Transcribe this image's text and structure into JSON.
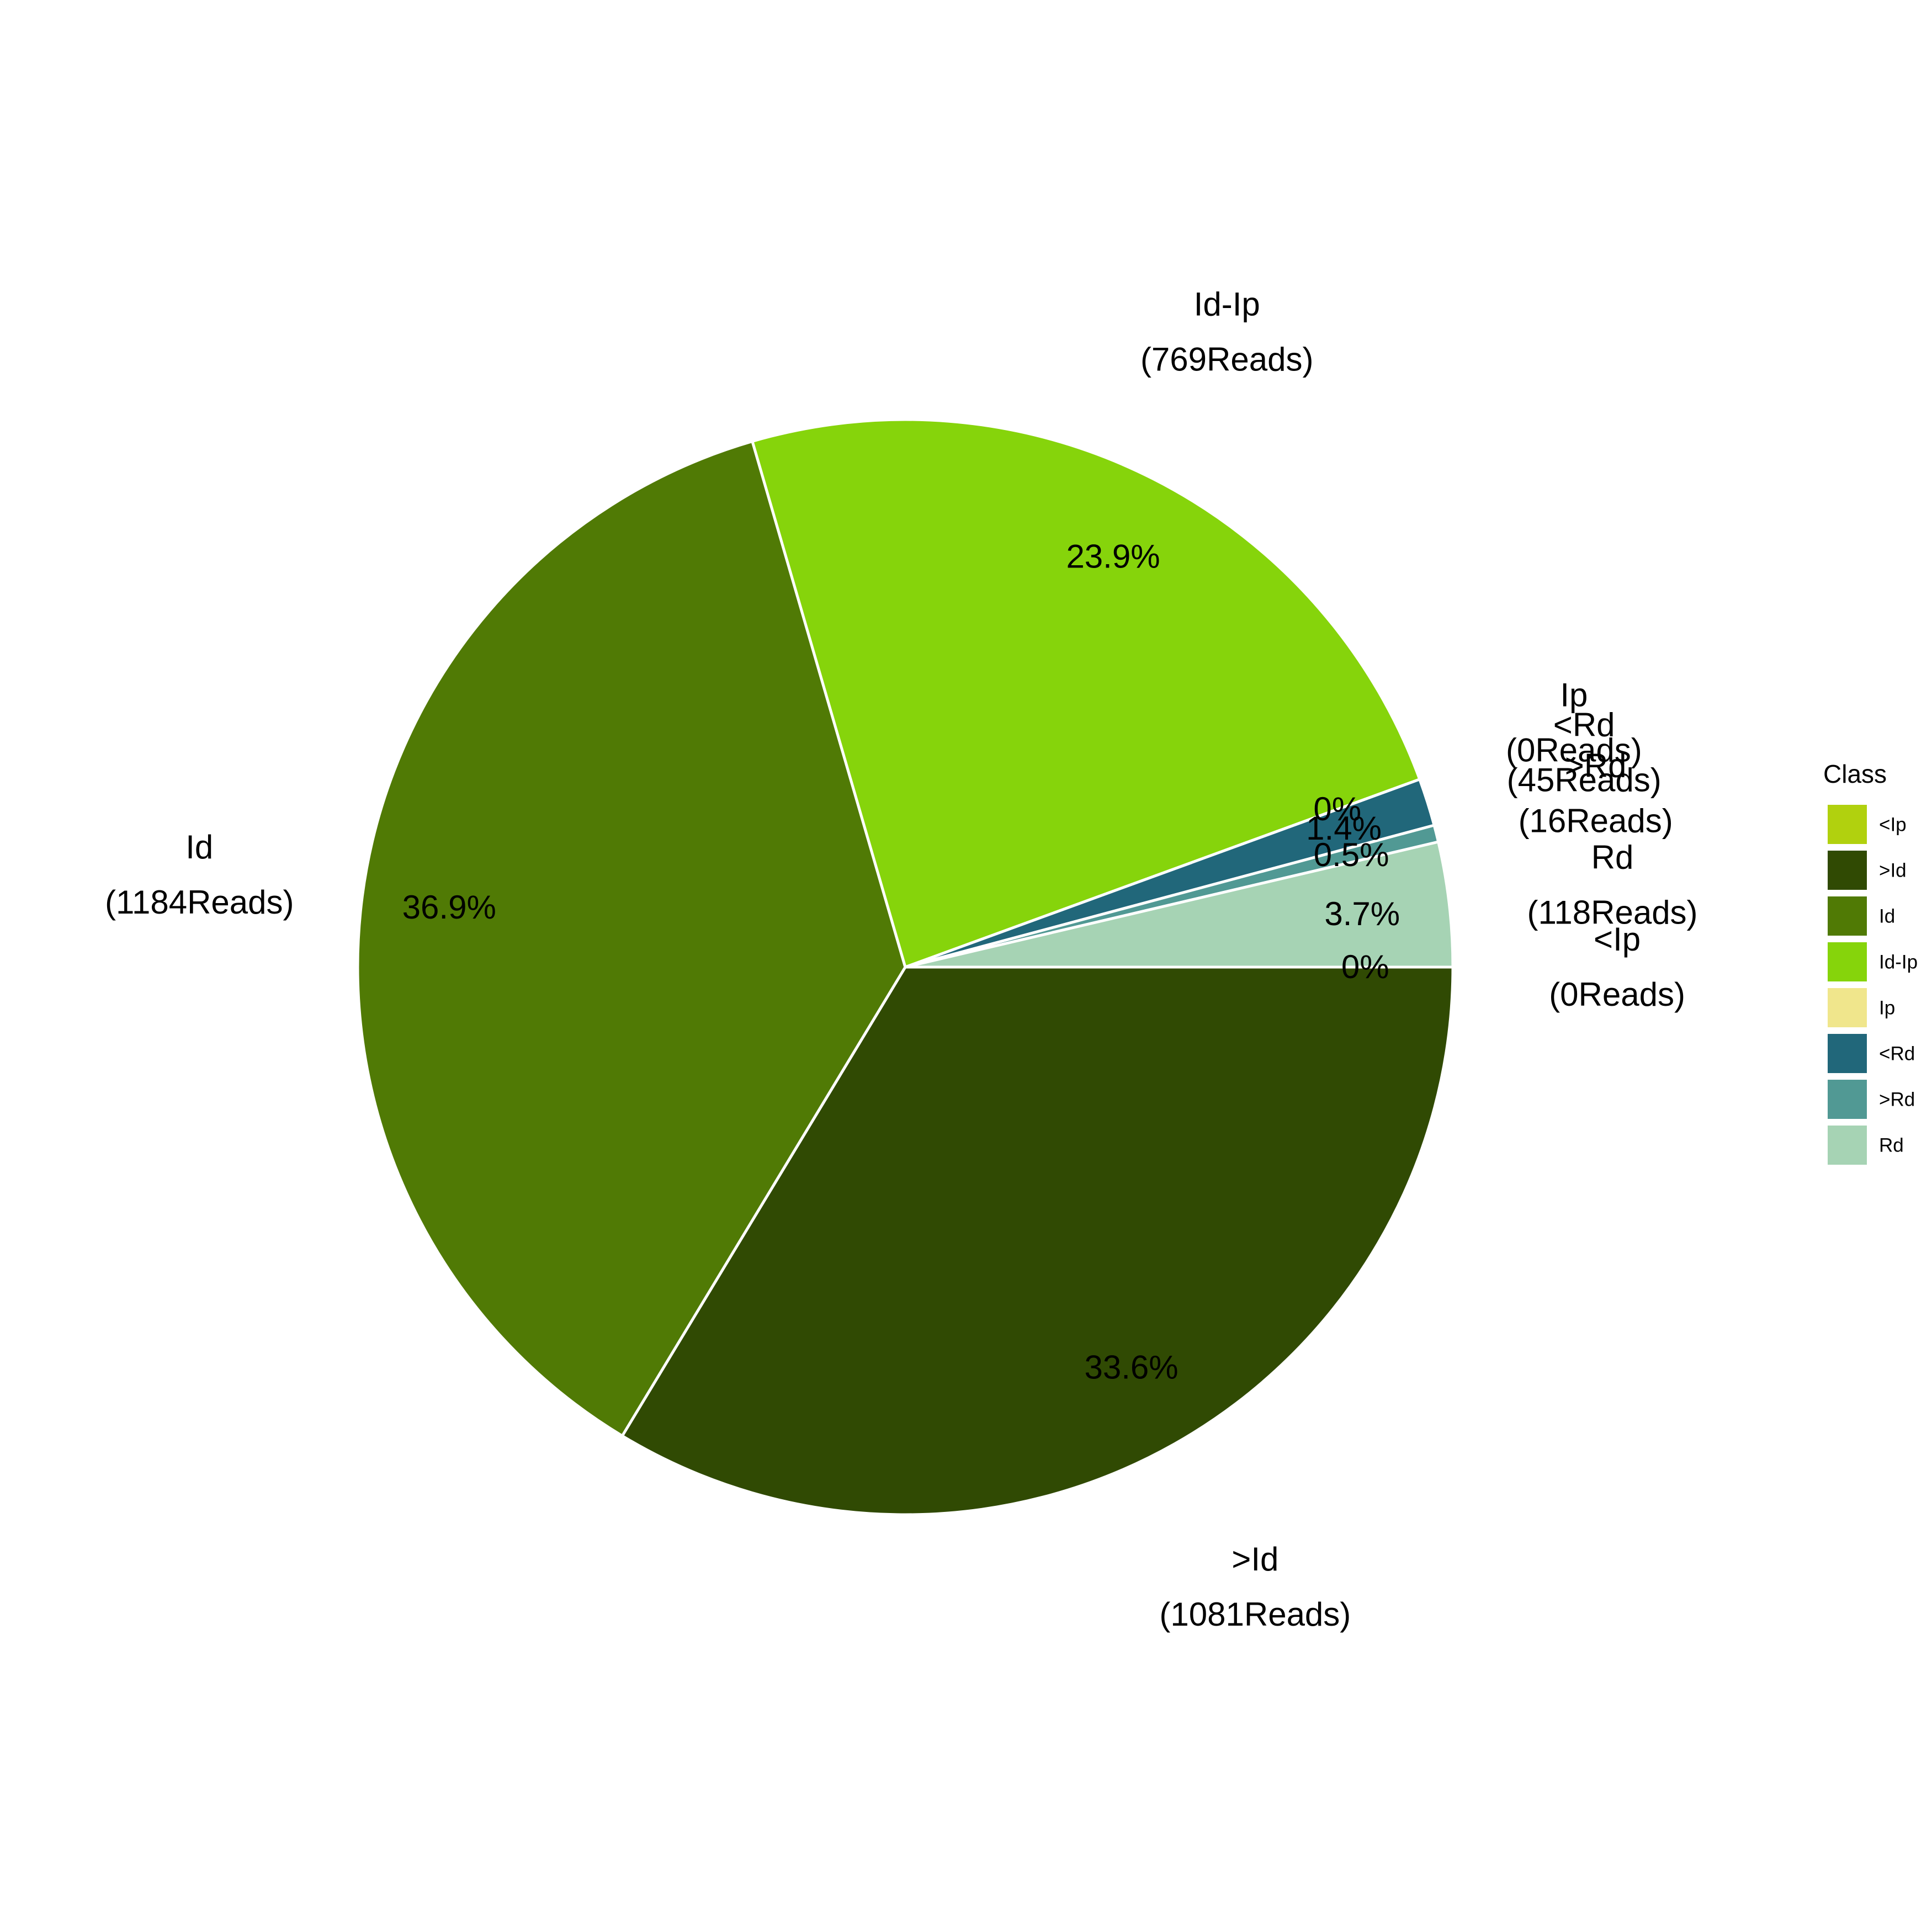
{
  "chart_data": {
    "type": "pie",
    "title": "",
    "legend": {
      "title": "Class",
      "placement": "right",
      "entries": [
        {
          "label": "<Ip",
          "color": "#B1D10E"
        },
        {
          "label": ">Id",
          "color": "#304A03"
        },
        {
          "label": "Id",
          "color": "#507A05"
        },
        {
          "label": "Id-Ip",
          "color": "#86D40B"
        },
        {
          "label": "Ip",
          "color": "#F0E68C"
        },
        {
          "label": "<Rd",
          "color": "#21677A"
        },
        {
          "label": ">Rd",
          "color": "#519994"
        },
        {
          "label": "Rd",
          "color": "#A6D3B4"
        }
      ]
    },
    "slices": [
      {
        "label": ">Id",
        "count_text": "(1081Reads)",
        "value": 1081,
        "percent_text": "33.6%",
        "color": "#304A03"
      },
      {
        "label": "Id",
        "count_text": "(1184Reads)",
        "value": 1184,
        "percent_text": "36.9%",
        "color": "#507A05"
      },
      {
        "label": "Id-Ip",
        "count_text": "(769Reads)",
        "value": 769,
        "percent_text": "23.9%",
        "color": "#86D40B"
      },
      {
        "label": "Ip",
        "count_text": "(0Reads)",
        "value": 0,
        "percent_text": "0%",
        "color": "#F0E68C"
      },
      {
        "label": "<Rd",
        "count_text": "(45Reads)",
        "value": 45,
        "percent_text": "1.4%",
        "color": "#21677A"
      },
      {
        "label": ">Rd",
        "count_text": "(16Reads)",
        "value": 16,
        "percent_text": "0.5%",
        "color": "#519994"
      },
      {
        "label": "Rd",
        "count_text": "(118Reads)",
        "value": 118,
        "percent_text": "3.7%",
        "color": "#A6D3B4"
      },
      {
        "label": "<Ip",
        "count_text": "(0Reads)",
        "value": 0,
        "percent_text": "0%",
        "color": "#B1D10E"
      }
    ]
  }
}
